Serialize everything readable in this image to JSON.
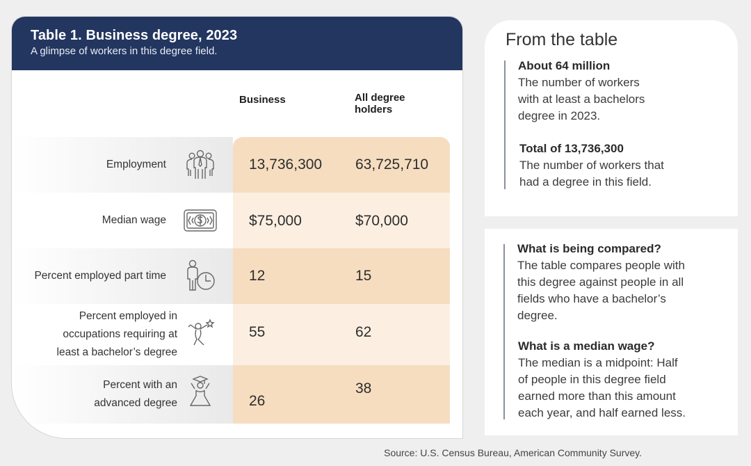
{
  "table": {
    "title": "Table 1. Business degree, 2023",
    "subtitle": "A glimpse of workers in this degree field.",
    "col1": "Business",
    "col2_line1": "All degree",
    "col2_line2": "holders",
    "rows": [
      {
        "label": "Employment",
        "icon": "people-group-icon",
        "business": "13,736,300",
        "all": "63,725,710"
      },
      {
        "label": "Median wage",
        "icon": "money-bill-icon",
        "business": "$75,000",
        "all": "$70,000"
      },
      {
        "label": "Percent employed part time",
        "icon": "person-clock-icon",
        "business": "12",
        "all": "15"
      },
      {
        "label_lines": [
          "Percent employed in",
          "occupations requiring at",
          "least a bachelor’s degree"
        ],
        "icon": "person-reaching-star-icon",
        "business": "55",
        "all": "62"
      },
      {
        "label_lines": [
          "Percent with an",
          "advanced degree"
        ],
        "icon": "graduate-icon",
        "business": "26",
        "all": "38"
      }
    ],
    "source": "Source: U.S. Census Bureau, American Community Survey."
  },
  "panel1": {
    "title": "From the table",
    "b1_head": "About 64 million",
    "b1_lines": [
      "The number of workers",
      "with at least a bachelors",
      "degree in 2023."
    ],
    "b2_head": "Total of 13,736,300",
    "b2_lines": [
      "The number of workers that",
      "had a degree in this field."
    ]
  },
  "panel2": {
    "q1_head": "What is being compared?",
    "q1_lines": [
      "The table compares people with",
      "this degree against people in all",
      "fields who have a bachelor’s",
      "degree."
    ],
    "q2_head": "What is a median wage?",
    "q2_lines": [
      "The median is a midpoint: Half",
      "of people in this degree field",
      "earned more than this amount",
      "each year, and half earned less."
    ]
  },
  "colors": {
    "header": "#233660",
    "value_dark": "#f6ddc0",
    "value_light": "#fcefe2"
  }
}
